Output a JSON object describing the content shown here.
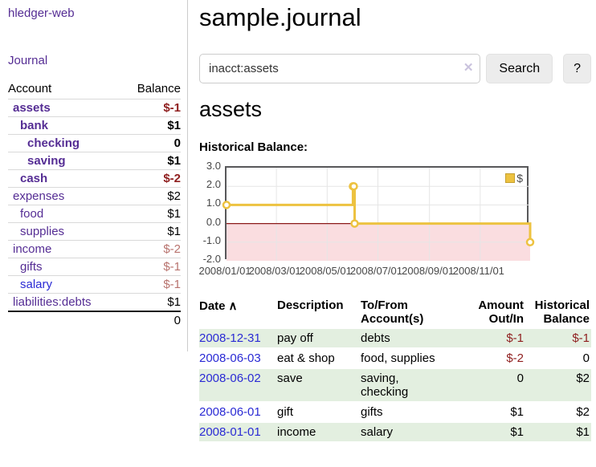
{
  "colors": {
    "link_purple": "#552d94",
    "link_blue": "#2a2ad4",
    "negative_strong": "#8f1f1f",
    "negative_soft": "#b8736e",
    "row_green": "#e3efe0",
    "chart_gold": "#edc240",
    "chart_pink": "#fadde0",
    "chart_zero_line": "#8b1a1a",
    "chart_border": "#58585a",
    "grid_line": "#e6e6e6",
    "button_bg": "#ececec",
    "clear_icon": "#c9c2dd"
  },
  "sidebar": {
    "brand": "hledger-web",
    "journal_label": "Journal",
    "header": {
      "account": "Account",
      "balance": "Balance"
    },
    "accounts": [
      {
        "name": "assets",
        "depth": 1,
        "bold": true,
        "name_color": "purple",
        "balance": "$-1",
        "balance_style": "negative-strong"
      },
      {
        "name": "bank",
        "depth": 2,
        "bold": true,
        "name_color": "purple",
        "balance": "$1",
        "balance_style": "normal"
      },
      {
        "name": "checking",
        "depth": 3,
        "bold": true,
        "name_color": "purple",
        "balance": "0",
        "balance_style": "normal"
      },
      {
        "name": "saving",
        "depth": 3,
        "bold": true,
        "name_color": "purple",
        "balance": "$1",
        "balance_style": "normal"
      },
      {
        "name": "cash",
        "depth": 2,
        "bold": true,
        "name_color": "purple",
        "balance": "$-2",
        "balance_style": "negative-strong"
      },
      {
        "name": "expenses",
        "depth": 1,
        "bold": false,
        "name_color": "purple",
        "balance": "$2",
        "balance_style": "normal"
      },
      {
        "name": "food",
        "depth": 2,
        "bold": false,
        "name_color": "purple",
        "balance": "$1",
        "balance_style": "normal"
      },
      {
        "name": "supplies",
        "depth": 2,
        "bold": false,
        "name_color": "purple",
        "balance": "$1",
        "balance_style": "normal"
      },
      {
        "name": "income",
        "depth": 1,
        "bold": false,
        "name_color": "purple",
        "balance": "$-2",
        "balance_style": "negative-soft"
      },
      {
        "name": "gifts",
        "depth": 2,
        "bold": false,
        "name_color": "purple",
        "balance": "$-1",
        "balance_style": "negative-soft"
      },
      {
        "name": "salary",
        "depth": 2,
        "bold": false,
        "name_color": "blue",
        "balance": "$-1",
        "balance_style": "negative-soft"
      },
      {
        "name": "liabilities:debts",
        "depth": 1,
        "bold": false,
        "name_color": "purple",
        "balance": "$1",
        "balance_style": "normal"
      }
    ],
    "total": "0"
  },
  "main": {
    "title": "sample.journal",
    "search": {
      "value": "inacct:assets",
      "clear_icon": "✕",
      "button_label": "Search",
      "help_label": "?"
    },
    "account_heading": "assets",
    "chart_label": "Historical Balance:"
  },
  "chart_data": {
    "type": "line",
    "step": true,
    "title": "Historical Balance",
    "xlim": [
      "2008-01-01",
      "2008-12-31"
    ],
    "ylim": [
      -2,
      3
    ],
    "yticks": [
      "3.0",
      "2.0",
      "1.0",
      "0.0",
      "-1.0",
      "-2.0"
    ],
    "xticks": [
      "2008/01/01",
      "2008/03/01",
      "2008/05/01",
      "2008/07/01",
      "2008/09/01",
      "2008/11/01"
    ],
    "series": [
      {
        "name": "$",
        "x": [
          "2008-01-01",
          "2008-06-01",
          "2008-06-02",
          "2008-06-03",
          "2008-12-31"
        ],
        "y": [
          1,
          2,
          2,
          0,
          -1
        ]
      }
    ],
    "legend_position": "top-right",
    "grid": true,
    "negative_region_shaded": true
  },
  "register": {
    "sort_icon": "∧",
    "columns": [
      {
        "lines": [
          "Date"
        ],
        "align": "left",
        "cls": "c-date",
        "sortable": true
      },
      {
        "lines": [
          "Description"
        ],
        "align": "left",
        "cls": "c-desc",
        "sortable": false
      },
      {
        "lines": [
          "To/From",
          "Account(s)"
        ],
        "align": "left",
        "cls": "c-acct",
        "sortable": false
      },
      {
        "lines": [
          "Amount",
          "Out/In"
        ],
        "align": "right",
        "cls": "c-amt",
        "sortable": false
      },
      {
        "lines": [
          "Historical",
          "Balance"
        ],
        "align": "right",
        "cls": "c-bal",
        "sortable": false
      }
    ],
    "rows": [
      {
        "date": "2008-12-31",
        "description": "pay off",
        "accounts": "debts",
        "amount": "$-1",
        "balance": "$-1",
        "amount_negative": true,
        "balance_negative": true
      },
      {
        "date": "2008-06-03",
        "description": "eat & shop",
        "accounts": "food, supplies",
        "amount": "$-2",
        "balance": "0",
        "amount_negative": true,
        "balance_negative": false
      },
      {
        "date": "2008-06-02",
        "description": "save",
        "accounts": "saving, checking",
        "amount": "0",
        "balance": "$2",
        "amount_negative": false,
        "balance_negative": false
      },
      {
        "date": "2008-06-01",
        "description": "gift",
        "accounts": "gifts",
        "amount": "$1",
        "balance": "$2",
        "amount_negative": false,
        "balance_negative": false
      },
      {
        "date": "2008-01-01",
        "description": "income",
        "accounts": "salary",
        "amount": "$1",
        "balance": "$1",
        "amount_negative": false,
        "balance_negative": false
      }
    ]
  }
}
